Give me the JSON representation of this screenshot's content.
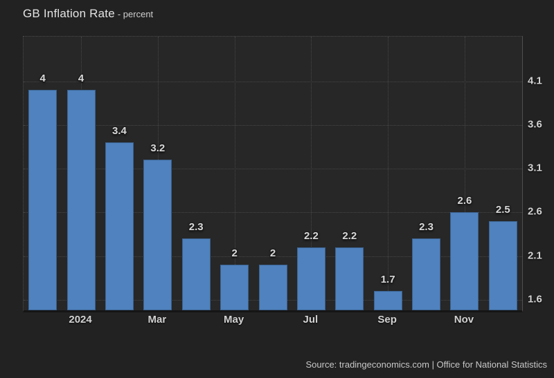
{
  "header": {
    "title": "GB Inflation Rate",
    "subtitle": "- percent"
  },
  "footer": {
    "source": "Source: tradingeconomics.com | Office for National Statistics"
  },
  "colors": {
    "page_background": "#222222",
    "plot_background": "#272727",
    "bar": "#4f82be",
    "grid": "#474747",
    "axis_line": "#151515",
    "label_text": "#d2d2d2"
  },
  "chart_data": {
    "type": "bar",
    "title": "GB Inflation Rate",
    "ylabel": "percent",
    "values": [
      4,
      4,
      3.4,
      3.2,
      2.3,
      2,
      2,
      2.2,
      2.2,
      1.7,
      2.3,
      2.6,
      2.5
    ],
    "bar_labels": [
      "4",
      "4",
      "3.4",
      "3.2",
      "2.3",
      "2",
      "2",
      "2.2",
      "2.2",
      "1.7",
      "2.3",
      "2.6",
      "2.5"
    ],
    "x_tick_labels": [
      "2024",
      "Mar",
      "May",
      "Jul",
      "Sep",
      "Nov"
    ],
    "x_tick_bar_indices": [
      1,
      3,
      5,
      7,
      9,
      11
    ],
    "y_tick_labels": [
      "4.1",
      "3.6",
      "3.1",
      "2.6",
      "2.1",
      "1.6"
    ],
    "y_tick_values": [
      4.1,
      3.6,
      3.1,
      2.6,
      2.1,
      1.6
    ],
    "ylim": [
      1.48,
      4.61
    ],
    "grid": "dotted",
    "legend": false,
    "bar_color": "#4f82be"
  }
}
